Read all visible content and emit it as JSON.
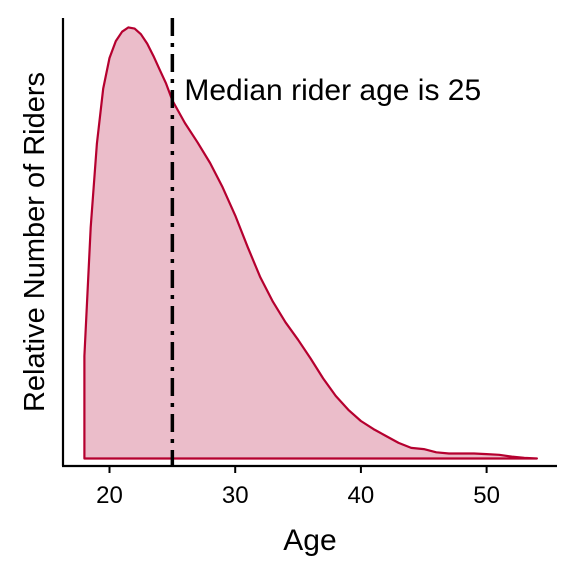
{
  "chart_data": {
    "type": "area",
    "title": "",
    "xlabel": "Age",
    "ylabel": "Relative Number of Riders",
    "xlim": [
      16.3,
      55.6
    ],
    "ylim": [
      -0.0012,
      0.0705
    ],
    "xticks": [
      20,
      30,
      40,
      50
    ],
    "xtick_labels": [
      "20",
      "30",
      "40",
      "50"
    ],
    "yticks": [],
    "grid": false,
    "legend": "none",
    "series": [
      {
        "x": [
          18,
          18.5,
          19,
          19.5,
          20,
          20.5,
          21,
          21.5,
          22,
          22.5,
          23,
          23.5,
          24,
          24.5,
          25,
          26,
          27,
          28,
          29,
          30,
          31,
          32,
          33,
          34,
          35,
          36,
          37,
          38,
          39,
          40,
          41,
          42,
          43,
          44,
          45,
          46,
          47,
          48,
          49,
          50,
          51,
          52,
          53,
          54
        ],
        "y": [
          0.0164,
          0.037,
          0.0504,
          0.0592,
          0.0641,
          0.0668,
          0.0683,
          0.069,
          0.0688,
          0.0679,
          0.0664,
          0.0644,
          0.0622,
          0.06,
          0.0573,
          0.0537,
          0.0506,
          0.0473,
          0.0434,
          0.0389,
          0.0338,
          0.029,
          0.0251,
          0.0218,
          0.019,
          0.016,
          0.0128,
          0.01,
          0.0078,
          0.006,
          0.0047,
          0.0036,
          0.0025,
          0.0017,
          0.0015,
          0.001,
          0.0008,
          0.0008,
          0.0008,
          0.0007,
          0.0006,
          0.0003,
          0.0001,
          0
        ]
      }
    ],
    "median": 25,
    "annotation": "Median rider age is 25",
    "colors": {
      "line": "#b5002f",
      "fill": "#ebbdca",
      "median_line": "#000000"
    }
  }
}
